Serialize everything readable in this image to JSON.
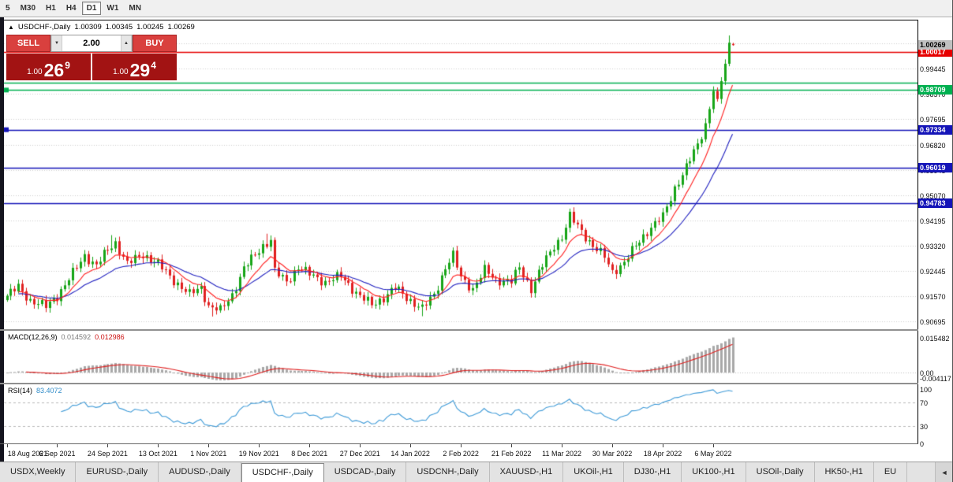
{
  "toolbar": {
    "timeframes": [
      "5",
      "M30",
      "H1",
      "H4",
      "D1",
      "W1",
      "MN"
    ],
    "active": "D1"
  },
  "icons": {
    "direction_up": "▲",
    "volume_down": "▼",
    "volume_up": "▲",
    "tab_scroll_left": "◄"
  },
  "header": {
    "symbol": "USDCHF-,Daily",
    "open": "1.00309",
    "high": "1.00345",
    "low": "1.00245",
    "close": "1.00269"
  },
  "trade_panel": {
    "sell_label": "SELL",
    "buy_label": "BUY",
    "volume": "2.00",
    "sell_price": {
      "small": "1.00",
      "big": "26",
      "sup": "9"
    },
    "buy_price": {
      "small": "1.00",
      "big": "29",
      "sup": "4"
    },
    "colors": {
      "button": "#d9403e",
      "price_box": "#a21313"
    }
  },
  "chart_data": {
    "type": "candlestick",
    "symbol": "USDCHF",
    "timeframe": "Daily",
    "title": "USDCHF-,Daily",
    "last_ohlc": {
      "open": 1.00309,
      "high": 1.00345,
      "low": 1.00245,
      "close": 1.00269
    },
    "y_axis": {
      "min": 0.9042,
      "max": 1.0112,
      "grid_base": 0.90695,
      "grid_step": 0.00875,
      "grid_count": 12
    },
    "x_axis_labels": [
      "18 Aug 2021",
      "6 Sep 2021",
      "24 Sep 2021",
      "13 Oct 2021",
      "1 Nov 2021",
      "19 Nov 2021",
      "8 Dec 2021",
      "27 Dec 2021",
      "14 Jan 2022",
      "2 Feb 2022",
      "21 Feb 2022",
      "11 Mar 2022",
      "30 Mar 2022",
      "18 Apr 2022",
      "6 May 2022"
    ],
    "label_step": 13,
    "candle_count": 188,
    "close_anchors": [
      [
        0,
        0.9158
      ],
      [
        3,
        0.9188
      ],
      [
        6,
        0.9142
      ],
      [
        10,
        0.912
      ],
      [
        13,
        0.9158
      ],
      [
        16,
        0.9215
      ],
      [
        20,
        0.9298
      ],
      [
        23,
        0.9262
      ],
      [
        26,
        0.9318
      ],
      [
        28,
        0.9342
      ],
      [
        31,
        0.9268
      ],
      [
        35,
        0.9302
      ],
      [
        39,
        0.9268
      ],
      [
        43,
        0.9212
      ],
      [
        47,
        0.9162
      ],
      [
        50,
        0.9188
      ],
      [
        52,
        0.9122
      ],
      [
        55,
        0.9106
      ],
      [
        58,
        0.9162
      ],
      [
        61,
        0.9252
      ],
      [
        64,
        0.93
      ],
      [
        66,
        0.9332
      ],
      [
        68,
        0.9352
      ],
      [
        69,
        0.9242
      ],
      [
        72,
        0.9206
      ],
      [
        75,
        0.9258
      ],
      [
        78,
        0.9232
      ],
      [
        82,
        0.9206
      ],
      [
        86,
        0.9226
      ],
      [
        91,
        0.9156
      ],
      [
        94,
        0.9126
      ],
      [
        97,
        0.9152
      ],
      [
        100,
        0.9186
      ],
      [
        104,
        0.9142
      ],
      [
        107,
        0.9112
      ],
      [
        110,
        0.9162
      ],
      [
        113,
        0.9256
      ],
      [
        115,
        0.9296
      ],
      [
        117,
        0.9222
      ],
      [
        120,
        0.9182
      ],
      [
        123,
        0.9246
      ],
      [
        126,
        0.9214
      ],
      [
        130,
        0.9206
      ],
      [
        132,
        0.9256
      ],
      [
        135,
        0.9182
      ],
      [
        138,
        0.9262
      ],
      [
        141,
        0.9332
      ],
      [
        143,
        0.9362
      ],
      [
        145,
        0.9432
      ],
      [
        148,
        0.9382
      ],
      [
        151,
        0.933
      ],
      [
        154,
        0.9292
      ],
      [
        156,
        0.9242
      ],
      [
        159,
        0.9272
      ],
      [
        162,
        0.9332
      ],
      [
        165,
        0.9382
      ],
      [
        169,
        0.9432
      ],
      [
        172,
        0.9532
      ],
      [
        175,
        0.9602
      ],
      [
        178,
        0.9682
      ],
      [
        180,
        0.9752
      ],
      [
        182,
        0.9872
      ],
      [
        183,
        0.9822
      ],
      [
        184,
        0.9902
      ],
      [
        185,
        0.9962
      ],
      [
        186,
        1.0035
      ],
      [
        187,
        1.00269
      ]
    ],
    "wick_overrides": {
      "27": {
        "high": 0.9368
      },
      "53": {
        "low": 0.9086
      },
      "67": {
        "high": 0.9373
      },
      "107": {
        "low": 0.9087
      },
      "145": {
        "high": 0.946
      },
      "186": {
        "high": 1.006
      }
    },
    "hlines": [
      {
        "price": 1.00017,
        "color": "#e60000",
        "badge": "1.00017"
      },
      {
        "price": 0.9895,
        "color": "#00b050"
      },
      {
        "price": 0.98709,
        "color": "#00b050",
        "badge": "0.98709",
        "marker": true
      },
      {
        "price": 0.97334,
        "color": "#1414b8",
        "badge": "0.97334",
        "marker": true
      },
      {
        "price": 0.96019,
        "color": "#1414b8",
        "badge": "0.96019"
      },
      {
        "price": 0.94783,
        "color": "#1414b8",
        "badge": "0.94783"
      }
    ],
    "current_price_badge": {
      "text": "1.00269",
      "bg": "#c0c0c0",
      "fg": "#000000"
    },
    "colors": {
      "up": "#18a518",
      "down": "#e02020",
      "ma_fast": "#ff2020",
      "ma_slow": "#2020c0",
      "grid": "#d0d0d0"
    },
    "ma_periods": {
      "fast": 9,
      "slow": 22
    },
    "indicators": {
      "macd": {
        "label": "MACD(12,26,9)",
        "value_main": "0.014592",
        "value_signal": "0.012986",
        "params": [
          12,
          26,
          9
        ],
        "axis_labels": [
          {
            "text": "0.015482",
            "value": 0.015482
          },
          {
            "text": "0.00",
            "value": 0
          },
          {
            "text": "-0.004117",
            "value": -0.004117
          }
        ],
        "range": [
          -0.0046,
          0.0185
        ],
        "hist_color": "#a8a8a8",
        "signal_color": "#e02020"
      },
      "rsi": {
        "label": "RSI(14)",
        "period": 14,
        "value": "83.4072",
        "line_color": "#3f9bd8",
        "axis_labels": [
          100,
          70,
          30,
          0
        ],
        "levels": [
          70,
          30
        ],
        "range": [
          0,
          100
        ]
      }
    }
  },
  "tabs": {
    "items": [
      "USDX,Weekly",
      "EURUSD-,Daily",
      "AUDUSD-,Daily",
      "USDCHF-,Daily",
      "USDCAD-,Daily",
      "USDCNH-,Daily",
      "XAUUSD-,H1",
      "UKOil-,H1",
      "DJ30-,H1",
      "UK100-,H1",
      "USOil-,Daily",
      "HK50-,H1",
      "EU"
    ],
    "active": "USDCHF-,Daily"
  }
}
